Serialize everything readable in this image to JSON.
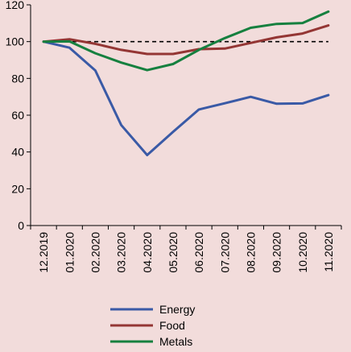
{
  "chart_data": {
    "type": "line",
    "categories": [
      "12.2019",
      "01.2020",
      "02.2020",
      "03.2020",
      "04.2020",
      "05.2020",
      "06.2020",
      "07.2020",
      "08.2020",
      "09.2020",
      "10.2020",
      "11.2020"
    ],
    "series": [
      {
        "name": "Energy",
        "color": "#3a5aa6",
        "values": [
          100,
          96.7,
          84.3,
          54.6,
          38.3,
          50.9,
          63.1,
          66.5,
          70.0,
          66.2,
          66.4,
          70.9
        ]
      },
      {
        "name": "Food",
        "color": "#943634",
        "values": [
          100,
          101.3,
          98.8,
          95.5,
          93.3,
          93.3,
          95.9,
          96.2,
          99.3,
          102.3,
          104.4,
          108.8
        ]
      },
      {
        "name": "Metals",
        "color": "#16803f",
        "values": [
          100,
          100.1,
          93.7,
          88.6,
          84.5,
          87.8,
          95.5,
          101.9,
          107.5,
          109.6,
          110.1,
          116.3
        ]
      }
    ],
    "reference_line": {
      "value": 100,
      "style": "dashed",
      "color": "#000000"
    },
    "ylim": [
      0,
      120
    ],
    "yticks": [
      0,
      20,
      40,
      60,
      80,
      100,
      120
    ],
    "grid": false,
    "legend_position": "bottom",
    "background": "#f2dcdb"
  }
}
